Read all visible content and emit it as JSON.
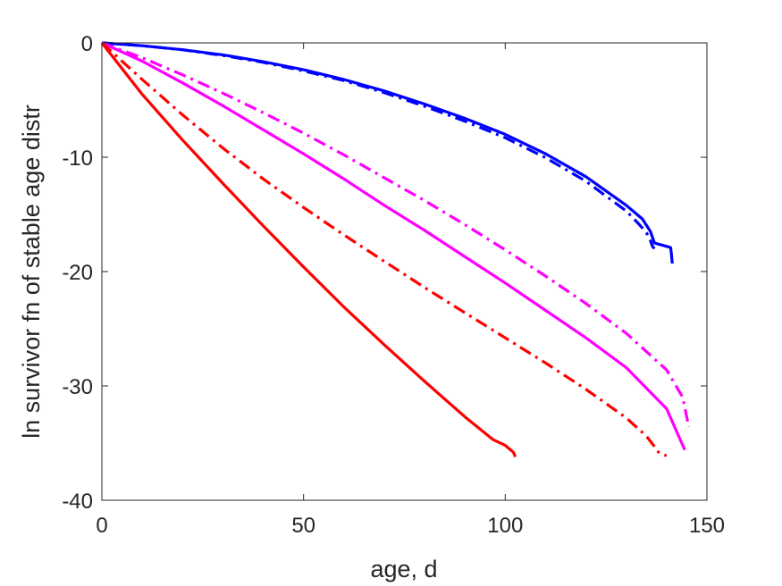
{
  "chart_data": {
    "type": "line",
    "title": "",
    "xlabel": "age, d",
    "ylabel": "ln survivor fn of stable age distr",
    "xlim": [
      0,
      150
    ],
    "ylim": [
      -40,
      0
    ],
    "xticks": [
      0,
      50,
      100,
      150
    ],
    "yticks": [
      0,
      -10,
      -20,
      -30,
      -40
    ],
    "xtick_labels": [
      "0",
      "50",
      "100",
      "150"
    ],
    "ytick_labels": [
      "0",
      "-10",
      "-20",
      "-30",
      "-40"
    ],
    "grid": false,
    "legend": "none",
    "series": [
      {
        "color": "#0000ff",
        "style": "solid",
        "x": [
          0,
          10,
          20,
          30,
          40,
          50,
          60,
          70,
          80,
          90,
          100,
          110,
          120,
          130,
          134,
          136,
          137,
          138,
          139,
          140,
          141,
          141.2,
          141.4
        ],
        "y": [
          0,
          -0.25,
          -0.6,
          -1.05,
          -1.65,
          -2.35,
          -3.2,
          -4.2,
          -5.35,
          -6.6,
          -8.0,
          -9.7,
          -11.7,
          -14.2,
          -15.4,
          -16.5,
          -17.5,
          -17.6,
          -17.7,
          -17.8,
          -17.9,
          -18.5,
          -19.3
        ]
      },
      {
        "color": "#0000ff",
        "style": "dashdot",
        "x": [
          0,
          10,
          20,
          30,
          40,
          50,
          60,
          70,
          80,
          90,
          100,
          110,
          120,
          130,
          133,
          135,
          136,
          136.5,
          137
        ],
        "y": [
          0,
          -0.25,
          -0.6,
          -1.1,
          -1.7,
          -2.45,
          -3.3,
          -4.35,
          -5.55,
          -6.85,
          -8.3,
          -10.05,
          -12.1,
          -14.7,
          -15.8,
          -16.6,
          -17.3,
          -17.8,
          -18.0
        ]
      },
      {
        "color": "#ff00ff",
        "style": "solid",
        "x": [
          0,
          10,
          20,
          30,
          40,
          50,
          60,
          70,
          80,
          90,
          100,
          110,
          120,
          130,
          140,
          144.5
        ],
        "y": [
          0,
          -1.6,
          -3.5,
          -5.5,
          -7.6,
          -9.7,
          -11.9,
          -14.2,
          -16.4,
          -18.7,
          -21.0,
          -23.4,
          -25.8,
          -28.4,
          -32.0,
          -35.6
        ]
      },
      {
        "color": "#ff00ff",
        "style": "dashdot",
        "x": [
          0,
          10,
          20,
          30,
          40,
          50,
          60,
          70,
          80,
          90,
          100,
          110,
          120,
          130,
          140,
          144,
          145.5
        ],
        "y": [
          0,
          -1.3,
          -2.8,
          -4.4,
          -6.1,
          -7.9,
          -9.8,
          -11.8,
          -13.8,
          -15.9,
          -18.1,
          -20.4,
          -22.8,
          -25.4,
          -28.6,
          -31.0,
          -33.6
        ]
      },
      {
        "color": "#ff0000",
        "style": "solid",
        "x": [
          0,
          10,
          20,
          30,
          40,
          50,
          60,
          70,
          80,
          90,
          97,
          100,
          101,
          102,
          102.5
        ],
        "y": [
          0,
          -4.5,
          -8.5,
          -12.3,
          -16.0,
          -19.6,
          -23.1,
          -26.4,
          -29.6,
          -32.7,
          -34.7,
          -35.2,
          -35.5,
          -35.8,
          -36.2
        ]
      },
      {
        "color": "#ff0000",
        "style": "dashdot",
        "x": [
          0,
          10,
          20,
          30,
          40,
          50,
          60,
          70,
          80,
          90,
          100,
          110,
          120,
          130,
          135,
          137,
          138,
          139,
          140
        ],
        "y": [
          0,
          -3.2,
          -6.3,
          -9.2,
          -11.9,
          -14.4,
          -16.8,
          -19.1,
          -21.4,
          -23.6,
          -25.8,
          -28.0,
          -30.3,
          -32.8,
          -34.4,
          -35.3,
          -35.8,
          -36.0,
          -36.1
        ]
      }
    ]
  }
}
